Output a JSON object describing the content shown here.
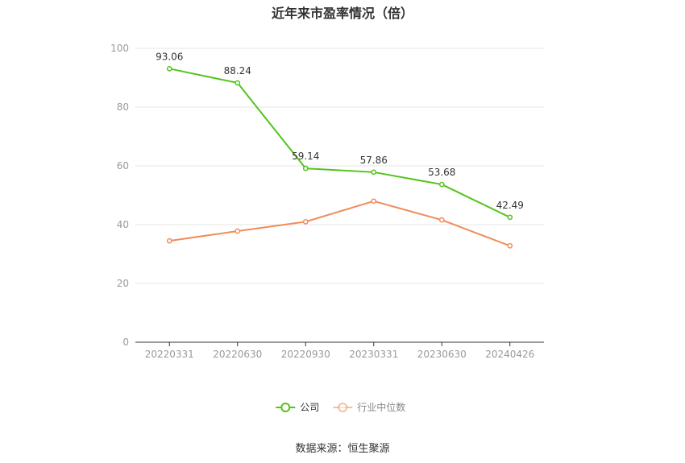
{
  "chart_data": {
    "type": "line",
    "title": "近年来市盈率情况（倍）",
    "categories": [
      "20220331",
      "20220630",
      "20220930",
      "20230331",
      "20230630",
      "20240426"
    ],
    "series": [
      {
        "name": "公司",
        "color": "#52c41a",
        "values": [
          93.06,
          88.24,
          59.14,
          57.86,
          53.68,
          42.49
        ],
        "labels": [
          "93.06",
          "88.24",
          "59.14",
          "57.86",
          "53.68",
          "42.49"
        ]
      },
      {
        "name": "行业中位数",
        "color": "#f08c5a",
        "values": [
          34.5,
          37.8,
          41.0,
          48.0,
          41.6,
          32.8
        ]
      }
    ],
    "ylim": [
      0,
      100
    ],
    "yticks": [
      "0",
      "20",
      "40",
      "60",
      "80",
      "100"
    ],
    "grid": true,
    "legend_position": "bottom"
  },
  "source": "数据来源：恒生聚源"
}
